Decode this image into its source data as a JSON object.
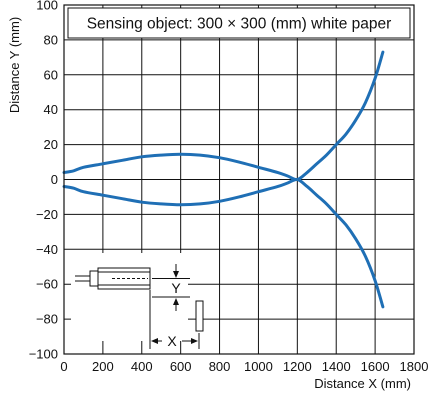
{
  "chart_data": {
    "type": "line",
    "title": "Sensing object: 300 × 300 (mm) white paper",
    "xlabel": "Distance X (mm)",
    "ylabel": "Distance Y (mm)",
    "xlim": [
      0,
      1800
    ],
    "ylim": [
      -100,
      100
    ],
    "x_ticks": [
      0,
      200,
      400,
      600,
      800,
      1000,
      1200,
      1400,
      1600,
      1800
    ],
    "y_ticks": [
      100,
      80,
      60,
      40,
      20,
      0,
      -20,
      -40,
      -60,
      -80,
      -100
    ],
    "y_tick_labels": [
      "100",
      "80",
      "60",
      "40",
      "20",
      "0",
      "−20",
      "−40",
      "−60",
      "−80",
      "−100"
    ],
    "grid": true,
    "series_color": "#1f6fb5",
    "series": [
      {
        "x": [
          0,
          50,
          100,
          200,
          300,
          400,
          500,
          600,
          700,
          800,
          900,
          1000,
          1100,
          1150,
          1200,
          1250,
          1300,
          1350,
          1400,
          1450,
          1500,
          1550,
          1600,
          1640
        ],
        "y": [
          4,
          5,
          7,
          9,
          11,
          13,
          14,
          14.5,
          14,
          12.5,
          10,
          7,
          4,
          2,
          0,
          4,
          9,
          14,
          20,
          26,
          34,
          44,
          58,
          73
        ]
      },
      {
        "x": [
          0,
          50,
          100,
          200,
          300,
          400,
          500,
          600,
          700,
          800,
          900,
          1000,
          1100,
          1150,
          1200,
          1250,
          1300,
          1350,
          1400,
          1450,
          1500,
          1550,
          1600,
          1640
        ],
        "y": [
          -4,
          -5,
          -7,
          -9,
          -11,
          -13,
          -14,
          -14.5,
          -14,
          -12.5,
          -10,
          -7,
          -4,
          -2,
          0,
          -4,
          -9,
          -14,
          -20,
          -26,
          -34,
          -44,
          -58,
          -73
        ]
      }
    ],
    "inset": {
      "y_label": "Y",
      "x_label": "X"
    }
  }
}
